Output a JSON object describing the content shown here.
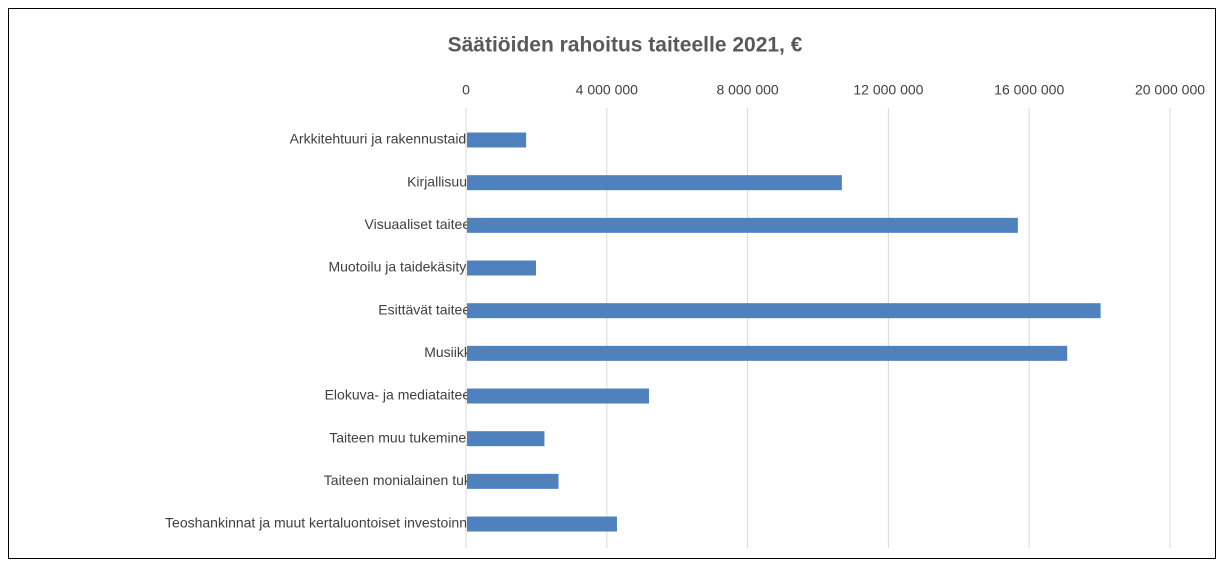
{
  "chart_data": {
    "type": "bar",
    "orientation": "horizontal",
    "title": "Säätiöiden rahoitus taiteelle 2021, €",
    "categories": [
      "Arkkitehtuuri ja rakennustaide",
      "Kirjallisuus",
      "Visuaaliset taiteet",
      "Muotoilu ja taidekäsityö",
      "Esittävät taiteet",
      "Musiikki",
      "Elokuva- ja mediataiteet",
      "Taiteen muu tukeminen",
      "Taiteen monialainen tuki",
      "Teoshankinnat ja muut kertaluontoiset investoinnit"
    ],
    "values": [
      1680000,
      10650000,
      15650000,
      1960000,
      18000000,
      17050000,
      5170000,
      2200000,
      2600000,
      4260000
    ],
    "color": "#4f81bd",
    "xlim": [
      0,
      20000000
    ],
    "xticks": [
      0,
      {
        "value": 4000000,
        "label": "4 000 000"
      },
      {
        "value": 8000000,
        "label": "8 000 000"
      },
      {
        "value": 12000000,
        "label": "12 000 000"
      },
      {
        "value": 16000000,
        "label": "16 000 000"
      },
      {
        "value": 20000000,
        "label": "20 000 000"
      }
    ],
    "grid": true
  }
}
